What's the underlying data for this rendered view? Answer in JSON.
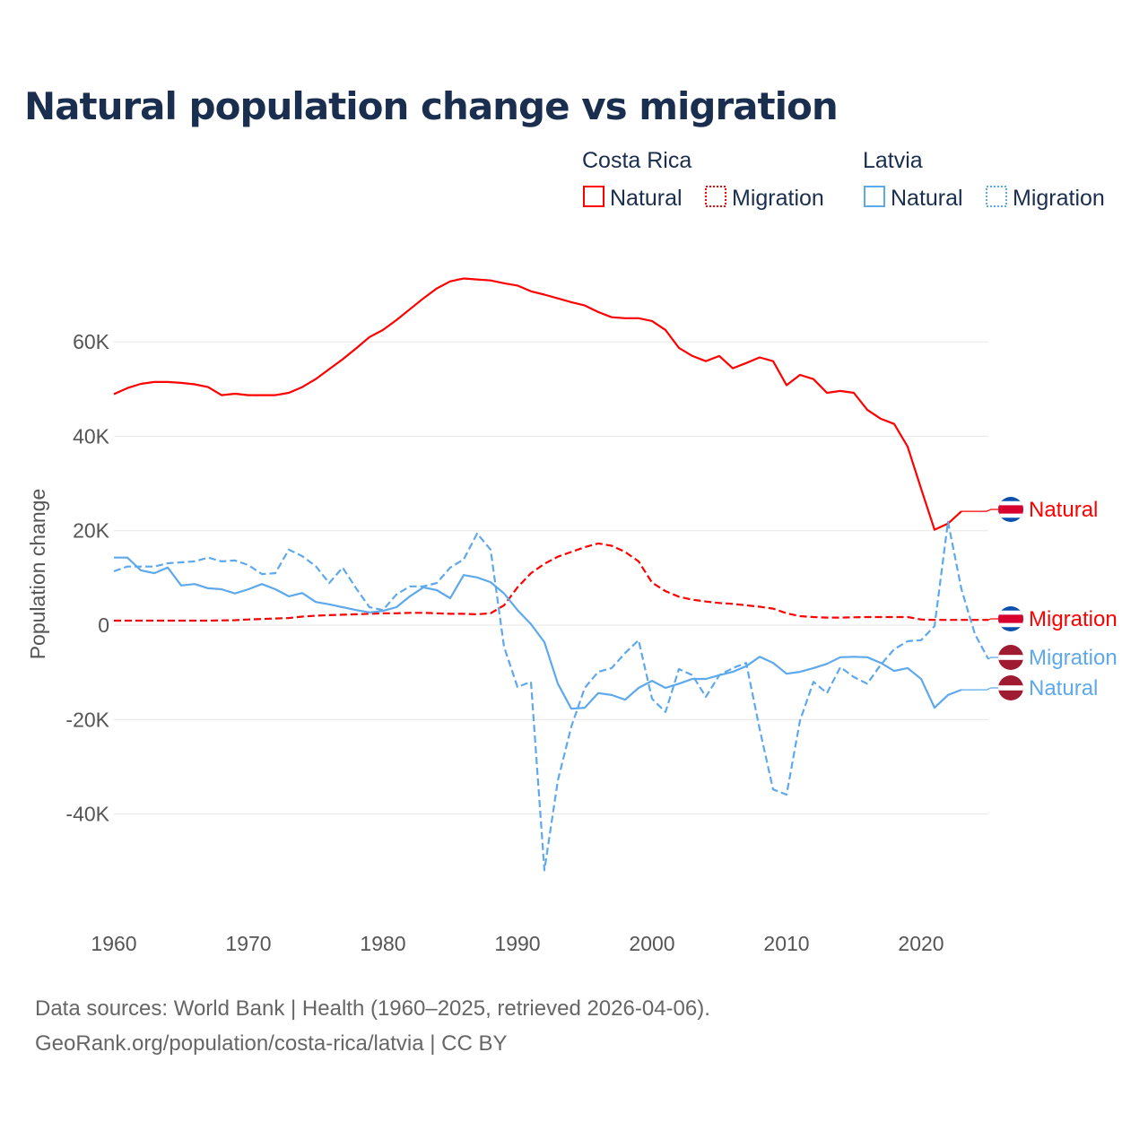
{
  "colors": {
    "costa_rica": "#ff0000",
    "latvia": "#5ea8ec",
    "title": "#1a2e4f",
    "grid": "#e6e6e6"
  },
  "chart_data": {
    "type": "line",
    "title": "Natural population change vs migration",
    "xlabel": "",
    "ylabel": "Population change",
    "xlim": [
      1960,
      2025
    ],
    "ylim": [
      -55000,
      75000
    ],
    "xticks": [
      1960,
      1970,
      1980,
      1990,
      2000,
      2010,
      2020
    ],
    "xtick_labels": [
      "1960",
      "1970",
      "1980",
      "1990",
      "2000",
      "2010",
      "2020"
    ],
    "yticks": [
      -40000,
      -20000,
      0,
      20000,
      40000,
      60000
    ],
    "ytick_labels": [
      "-40K",
      "-20K",
      "0",
      "20K",
      "40K",
      "60K"
    ],
    "grid": true,
    "legend": {
      "placement": "top-right",
      "groups": [
        {
          "name": "Costa Rica",
          "items": [
            "Natural",
            "Migration"
          ]
        },
        {
          "name": "Latvia",
          "items": [
            "Natural",
            "Migration"
          ]
        }
      ]
    },
    "series": [
      {
        "name": "Natural",
        "country": "Costa Rica",
        "color": "#ff0000",
        "style": "solid",
        "start": 1960,
        "values": [
          48900,
          50200,
          51100,
          51500,
          51500,
          51300,
          51000,
          50400,
          48700,
          49000,
          48700,
          48700,
          48700,
          49200,
          50400,
          52100,
          54200,
          56300,
          58600,
          61000,
          62500,
          64600,
          66900,
          69200,
          71300,
          72800,
          73400,
          73200,
          73000,
          72400,
          71900,
          70700,
          70000,
          69200,
          68400,
          67700,
          66300,
          65200,
          65000,
          65000,
          64400,
          62500,
          58700,
          57000,
          55900,
          57000,
          54400,
          55500,
          56700,
          55900,
          50800,
          53000,
          52100,
          49200,
          49600,
          49200,
          45600,
          43700,
          42600,
          37800,
          28900,
          20200,
          21500,
          24100
        ]
      },
      {
        "name": "Migration",
        "country": "Costa Rica",
        "color": "#ff0000",
        "style": "dashed",
        "start": 1960,
        "values": [
          950,
          950,
          950,
          950,
          950,
          950,
          950,
          950,
          1000,
          1050,
          1200,
          1300,
          1400,
          1500,
          1800,
          2000,
          2100,
          2200,
          2300,
          2400,
          2500,
          2500,
          2600,
          2600,
          2500,
          2400,
          2400,
          2300,
          2500,
          4200,
          8000,
          11000,
          13000,
          14500,
          15500,
          16500,
          17300,
          16800,
          15500,
          13500,
          9000,
          7200,
          6000,
          5400,
          5000,
          4700,
          4500,
          4200,
          3900,
          3500,
          2500,
          1900,
          1700,
          1600,
          1600,
          1650,
          1700,
          1700,
          1700,
          1700,
          1200,
          1100,
          1100,
          1100,
          1100,
          1100
        ]
      },
      {
        "name": "Natural",
        "country": "Latvia",
        "color": "#5ea8ec",
        "style": "solid",
        "start": 1960,
        "values": [
          14300,
          14300,
          11600,
          11000,
          12200,
          8400,
          8700,
          7800,
          7600,
          6700,
          7600,
          8700,
          7600,
          6100,
          6800,
          4900,
          4400,
          3800,
          3200,
          2700,
          3000,
          3800,
          6100,
          8000,
          7400,
          5700,
          10600,
          10100,
          9100,
          6700,
          3200,
          200,
          -3600,
          -12400,
          -17700,
          -17500,
          -14400,
          -14800,
          -15800,
          -13300,
          -11800,
          -13300,
          -12400,
          -11400,
          -11400,
          -10600,
          -9900,
          -8700,
          -6700,
          -8000,
          -10300,
          -9900,
          -9100,
          -8200,
          -6800,
          -6700,
          -6800,
          -8000,
          -9700,
          -9100,
          -11400,
          -17500,
          -14800,
          -13700
        ]
      },
      {
        "name": "Migration",
        "country": "Latvia",
        "color": "#5ea8ec",
        "style": "dashed",
        "start": 1960,
        "values": [
          11400,
          12400,
          12400,
          12400,
          13100,
          13300,
          13500,
          14300,
          13500,
          13700,
          12700,
          10800,
          11000,
          16000,
          14600,
          12500,
          8900,
          12200,
          7800,
          3800,
          3200,
          6500,
          8200,
          8200,
          8900,
          12200,
          13900,
          19400,
          16000,
          -4600,
          -13100,
          -12000,
          -51900,
          -32900,
          -21500,
          -13300,
          -9900,
          -9100,
          -5900,
          -3200,
          -15600,
          -18400,
          -9300,
          -10600,
          -15200,
          -10600,
          -9100,
          -8000,
          -22000,
          -34800,
          -35900,
          -20200,
          -12000,
          -14400,
          -8900,
          -11000,
          -12400,
          -8400,
          -5100,
          -3400,
          -3200,
          -200,
          21900,
          7600,
          -1900,
          -7200
        ]
      }
    ],
    "end_labels": [
      {
        "text": "Natural",
        "country": "Costa Rica",
        "color": "#ff0000",
        "flag": "costa-rica-flag",
        "value": 24100
      },
      {
        "text": "Migration",
        "country": "Costa Rica",
        "color": "#ff0000",
        "flag": "costa-rica-flag",
        "value": 1100
      },
      {
        "text": "Migration",
        "country": "Latvia",
        "color": "#5ea8ec",
        "flag": "latvia-flag",
        "value": -7200
      },
      {
        "text": "Natural",
        "country": "Latvia",
        "color": "#5ea8ec",
        "flag": "latvia-flag",
        "value": -13700
      }
    ]
  },
  "source": {
    "line1": "Data sources: World Bank | Health (1960–2025, retrieved 2026-04-06).",
    "line2": "GeoRank.org/population/costa-rica/latvia | CC BY"
  }
}
